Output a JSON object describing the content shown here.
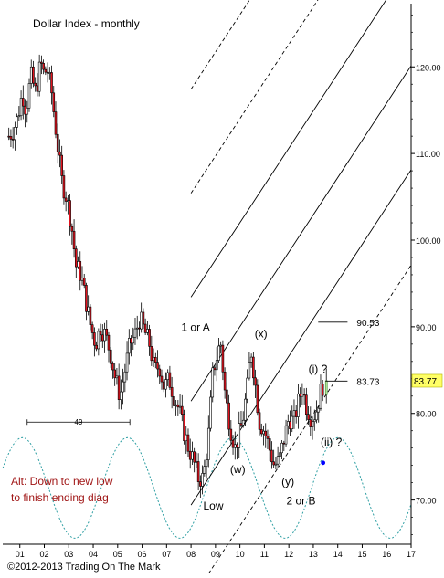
{
  "chart_data": {
    "type": "candlestick",
    "title": "Dollar Index - monthly",
    "copyright": "©2012-2013 Trading On The Mark",
    "x_ticks": [
      "01",
      "02",
      "03",
      "04",
      "05",
      "06",
      "07",
      "08",
      "09",
      "10",
      "11",
      "12",
      "13",
      "14",
      "15",
      "16",
      "17"
    ],
    "y_ticks": [
      70.0,
      80.0,
      90.0,
      100.0,
      110.0,
      120.0
    ],
    "y_tick_labels": [
      "70.00",
      "80.00",
      "90.00",
      "100.00",
      "110.00",
      "120.00"
    ],
    "ylim": [
      64.9,
      127.3
    ],
    "xlim": [
      2000.3,
      2017.0
    ],
    "grid": false,
    "colors": {
      "up_body": "#ffffff",
      "down_body": "#e0121d",
      "candle_edge": "#000000",
      "channel": "#000000",
      "cycle": "#2e9fa3",
      "annotation_red": "#a01515",
      "current_price_bg": "#ffff66",
      "projection_dot": "#0000ff"
    },
    "ohlc_path": [
      [
        2000.55,
        112
      ],
      [
        2000.7,
        112.5
      ],
      [
        2000.9,
        114
      ],
      [
        2001.1,
        117
      ],
      [
        2001.25,
        115
      ],
      [
        2001.45,
        119
      ],
      [
        2001.65,
        117
      ],
      [
        2001.85,
        120.5
      ],
      [
        2002.0,
        119
      ],
      [
        2002.1,
        120
      ],
      [
        2002.3,
        117
      ],
      [
        2002.5,
        112
      ],
      [
        2002.7,
        107
      ],
      [
        2002.9,
        105
      ],
      [
        2003.1,
        102
      ],
      [
        2003.3,
        97
      ],
      [
        2003.5,
        96
      ],
      [
        2003.7,
        93
      ],
      [
        2003.9,
        90
      ],
      [
        2004.1,
        88
      ],
      [
        2004.3,
        90
      ],
      [
        2004.5,
        89
      ],
      [
        2004.7,
        87
      ],
      [
        2004.9,
        84
      ],
      [
        2005.1,
        82
      ],
      [
        2005.3,
        85
      ],
      [
        2005.5,
        88
      ],
      [
        2005.7,
        89
      ],
      [
        2005.9,
        91
      ],
      [
        2006.1,
        89.5
      ],
      [
        2006.3,
        88
      ],
      [
        2006.5,
        85
      ],
      [
        2006.7,
        85.5
      ],
      [
        2006.9,
        83
      ],
      [
        2007.1,
        84
      ],
      [
        2007.3,
        82
      ],
      [
        2007.5,
        80.5
      ],
      [
        2007.7,
        78
      ],
      [
        2007.9,
        76
      ],
      [
        2008.1,
        74.5
      ],
      [
        2008.3,
        72.5
      ],
      [
        2008.5,
        72.5
      ],
      [
        2008.7,
        77
      ],
      [
        2008.9,
        85
      ],
      [
        2009.1,
        87
      ],
      [
        2009.2,
        88.5
      ],
      [
        2009.4,
        82
      ],
      [
        2009.6,
        78.5
      ],
      [
        2009.8,
        76
      ],
      [
        2010.1,
        79
      ],
      [
        2010.3,
        83
      ],
      [
        2010.45,
        87.5
      ],
      [
        2010.6,
        84
      ],
      [
        2010.8,
        79
      ],
      [
        2011.0,
        78
      ],
      [
        2011.2,
        76
      ],
      [
        2011.4,
        74
      ],
      [
        2011.6,
        74.5
      ],
      [
        2011.8,
        77
      ],
      [
        2012.0,
        79.5
      ],
      [
        2012.2,
        79
      ],
      [
        2012.4,
        81.5
      ],
      [
        2012.55,
        83
      ],
      [
        2012.7,
        81
      ],
      [
        2012.9,
        79.5
      ],
      [
        2013.1,
        80
      ],
      [
        2013.3,
        82.5
      ],
      [
        2013.45,
        83.8
      ]
    ],
    "channel": {
      "slope_per_year": 4.3,
      "anchor_year": 2008.6,
      "levels_at_anchor": [
        84,
        96,
        72,
        108,
        120,
        61,
        132
      ],
      "solid": [
        0,
        1,
        2
      ],
      "dashed": [
        3,
        4,
        5,
        6
      ],
      "x_from": 2008.0,
      "x_to": 2017.0
    },
    "cycle": {
      "period_years": 4.3,
      "peak_year": 2001.1,
      "y_top": 77.2,
      "y_bottom": 65.6
    },
    "wave_labels": [
      {
        "text": "1 or A",
        "x": 2007.6,
        "y": 89.5
      },
      {
        "text": "(x)",
        "x": 2010.6,
        "y": 88.8
      },
      {
        "text": "(w)",
        "x": 2009.6,
        "y": 73.1
      },
      {
        "text": "(y)",
        "x": 2011.7,
        "y": 71.7
      },
      {
        "text": "2 or B",
        "x": 2011.9,
        "y": 69.5
      },
      {
        "text": "Low",
        "x": 2008.5,
        "y": 68.9
      },
      {
        "text": "(i) ?",
        "x": 2012.8,
        "y": 84.7
      },
      {
        "text": "(ii) ?",
        "x": 2013.3,
        "y": 76.3
      }
    ],
    "level_marks": [
      {
        "label": "90.53",
        "y": 90.53,
        "x_from": 2013.2,
        "x_to": 2014.4
      },
      {
        "label": "83.73",
        "y": 83.73,
        "x_from": 2013.5,
        "x_to": 2014.4
      }
    ],
    "cycle_length_marker": {
      "label": "49",
      "x_from": 2001.3,
      "x_to": 2005.5,
      "y": 79.0
    },
    "projection_point": {
      "x": 2013.4,
      "y": 74.3
    },
    "current_price": {
      "label": "83.77",
      "y": 83.77
    },
    "alternate_note": {
      "lines": [
        "Alt: Down to new low",
        "to finish ending diag"
      ]
    }
  }
}
